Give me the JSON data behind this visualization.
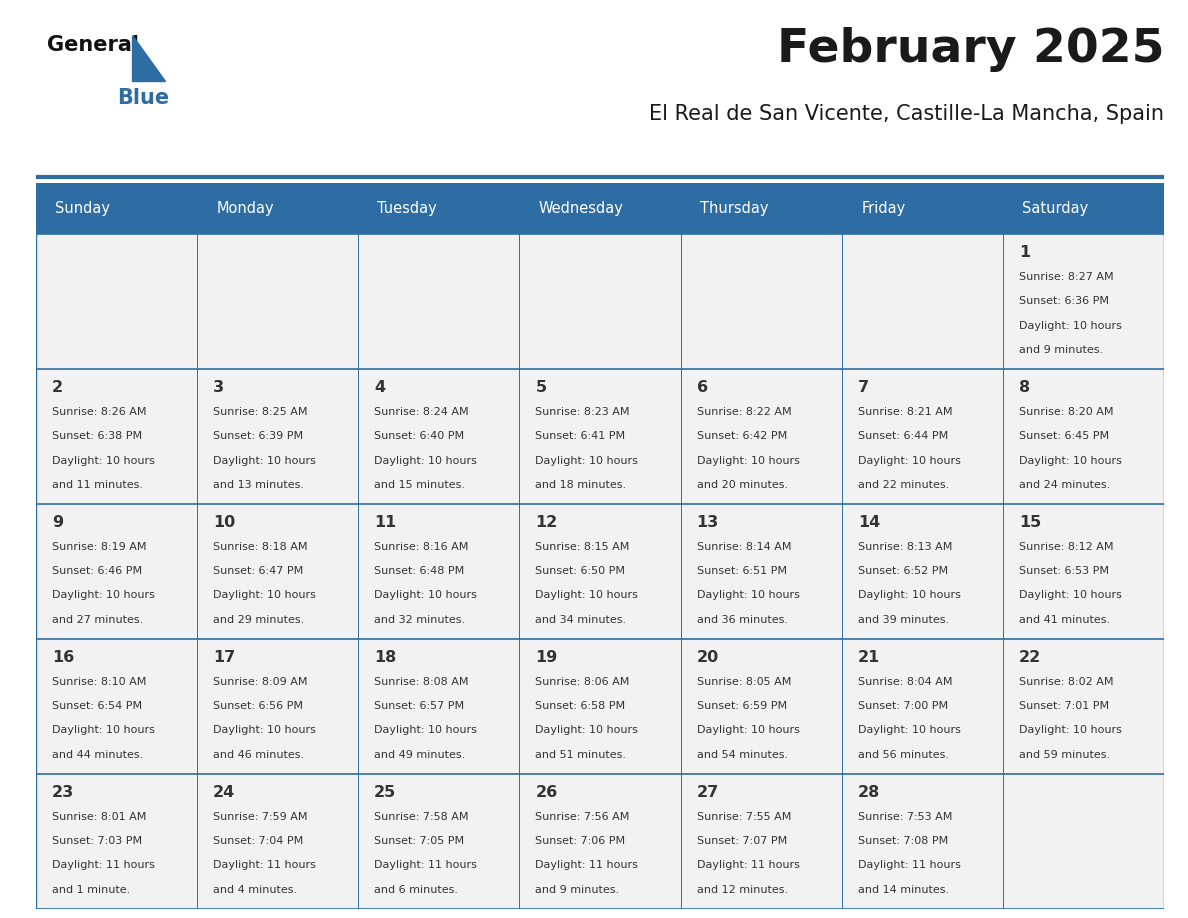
{
  "title": "February 2025",
  "subtitle": "El Real de San Vicente, Castille-La Mancha, Spain",
  "header_bg": "#2E6DA4",
  "header_text": "#FFFFFF",
  "cell_bg": "#F2F2F2",
  "border_color": "#2E6DA4",
  "text_color": "#333333",
  "day_names": [
    "Sunday",
    "Monday",
    "Tuesday",
    "Wednesday",
    "Thursday",
    "Friday",
    "Saturday"
  ],
  "n_cols": 7,
  "n_rows": 5,
  "days": [
    {
      "day": 1,
      "col": 6,
      "row": 0,
      "sunrise": "8:27 AM",
      "sunset": "6:36 PM",
      "daylight_h": "10 hours",
      "daylight_m": "and 9 minutes."
    },
    {
      "day": 2,
      "col": 0,
      "row": 1,
      "sunrise": "8:26 AM",
      "sunset": "6:38 PM",
      "daylight_h": "10 hours",
      "daylight_m": "and 11 minutes."
    },
    {
      "day": 3,
      "col": 1,
      "row": 1,
      "sunrise": "8:25 AM",
      "sunset": "6:39 PM",
      "daylight_h": "10 hours",
      "daylight_m": "and 13 minutes."
    },
    {
      "day": 4,
      "col": 2,
      "row": 1,
      "sunrise": "8:24 AM",
      "sunset": "6:40 PM",
      "daylight_h": "10 hours",
      "daylight_m": "and 15 minutes."
    },
    {
      "day": 5,
      "col": 3,
      "row": 1,
      "sunrise": "8:23 AM",
      "sunset": "6:41 PM",
      "daylight_h": "10 hours",
      "daylight_m": "and 18 minutes."
    },
    {
      "day": 6,
      "col": 4,
      "row": 1,
      "sunrise": "8:22 AM",
      "sunset": "6:42 PM",
      "daylight_h": "10 hours",
      "daylight_m": "and 20 minutes."
    },
    {
      "day": 7,
      "col": 5,
      "row": 1,
      "sunrise": "8:21 AM",
      "sunset": "6:44 PM",
      "daylight_h": "10 hours",
      "daylight_m": "and 22 minutes."
    },
    {
      "day": 8,
      "col": 6,
      "row": 1,
      "sunrise": "8:20 AM",
      "sunset": "6:45 PM",
      "daylight_h": "10 hours",
      "daylight_m": "and 24 minutes."
    },
    {
      "day": 9,
      "col": 0,
      "row": 2,
      "sunrise": "8:19 AM",
      "sunset": "6:46 PM",
      "daylight_h": "10 hours",
      "daylight_m": "and 27 minutes."
    },
    {
      "day": 10,
      "col": 1,
      "row": 2,
      "sunrise": "8:18 AM",
      "sunset": "6:47 PM",
      "daylight_h": "10 hours",
      "daylight_m": "and 29 minutes."
    },
    {
      "day": 11,
      "col": 2,
      "row": 2,
      "sunrise": "8:16 AM",
      "sunset": "6:48 PM",
      "daylight_h": "10 hours",
      "daylight_m": "and 32 minutes."
    },
    {
      "day": 12,
      "col": 3,
      "row": 2,
      "sunrise": "8:15 AM",
      "sunset": "6:50 PM",
      "daylight_h": "10 hours",
      "daylight_m": "and 34 minutes."
    },
    {
      "day": 13,
      "col": 4,
      "row": 2,
      "sunrise": "8:14 AM",
      "sunset": "6:51 PM",
      "daylight_h": "10 hours",
      "daylight_m": "and 36 minutes."
    },
    {
      "day": 14,
      "col": 5,
      "row": 2,
      "sunrise": "8:13 AM",
      "sunset": "6:52 PM",
      "daylight_h": "10 hours",
      "daylight_m": "and 39 minutes."
    },
    {
      "day": 15,
      "col": 6,
      "row": 2,
      "sunrise": "8:12 AM",
      "sunset": "6:53 PM",
      "daylight_h": "10 hours",
      "daylight_m": "and 41 minutes."
    },
    {
      "day": 16,
      "col": 0,
      "row": 3,
      "sunrise": "8:10 AM",
      "sunset": "6:54 PM",
      "daylight_h": "10 hours",
      "daylight_m": "and 44 minutes."
    },
    {
      "day": 17,
      "col": 1,
      "row": 3,
      "sunrise": "8:09 AM",
      "sunset": "6:56 PM",
      "daylight_h": "10 hours",
      "daylight_m": "and 46 minutes."
    },
    {
      "day": 18,
      "col": 2,
      "row": 3,
      "sunrise": "8:08 AM",
      "sunset": "6:57 PM",
      "daylight_h": "10 hours",
      "daylight_m": "and 49 minutes."
    },
    {
      "day": 19,
      "col": 3,
      "row": 3,
      "sunrise": "8:06 AM",
      "sunset": "6:58 PM",
      "daylight_h": "10 hours",
      "daylight_m": "and 51 minutes."
    },
    {
      "day": 20,
      "col": 4,
      "row": 3,
      "sunrise": "8:05 AM",
      "sunset": "6:59 PM",
      "daylight_h": "10 hours",
      "daylight_m": "and 54 minutes."
    },
    {
      "day": 21,
      "col": 5,
      "row": 3,
      "sunrise": "8:04 AM",
      "sunset": "7:00 PM",
      "daylight_h": "10 hours",
      "daylight_m": "and 56 minutes."
    },
    {
      "day": 22,
      "col": 6,
      "row": 3,
      "sunrise": "8:02 AM",
      "sunset": "7:01 PM",
      "daylight_h": "10 hours",
      "daylight_m": "and 59 minutes."
    },
    {
      "day": 23,
      "col": 0,
      "row": 4,
      "sunrise": "8:01 AM",
      "sunset": "7:03 PM",
      "daylight_h": "11 hours",
      "daylight_m": "and 1 minute."
    },
    {
      "day": 24,
      "col": 1,
      "row": 4,
      "sunrise": "7:59 AM",
      "sunset": "7:04 PM",
      "daylight_h": "11 hours",
      "daylight_m": "and 4 minutes."
    },
    {
      "day": 25,
      "col": 2,
      "row": 4,
      "sunrise": "7:58 AM",
      "sunset": "7:05 PM",
      "daylight_h": "11 hours",
      "daylight_m": "and 6 minutes."
    },
    {
      "day": 26,
      "col": 3,
      "row": 4,
      "sunrise": "7:56 AM",
      "sunset": "7:06 PM",
      "daylight_h": "11 hours",
      "daylight_m": "and 9 minutes."
    },
    {
      "day": 27,
      "col": 4,
      "row": 4,
      "sunrise": "7:55 AM",
      "sunset": "7:07 PM",
      "daylight_h": "11 hours",
      "daylight_m": "and 12 minutes."
    },
    {
      "day": 28,
      "col": 5,
      "row": 4,
      "sunrise": "7:53 AM",
      "sunset": "7:08 PM",
      "daylight_h": "11 hours",
      "daylight_m": "and 14 minutes."
    }
  ]
}
